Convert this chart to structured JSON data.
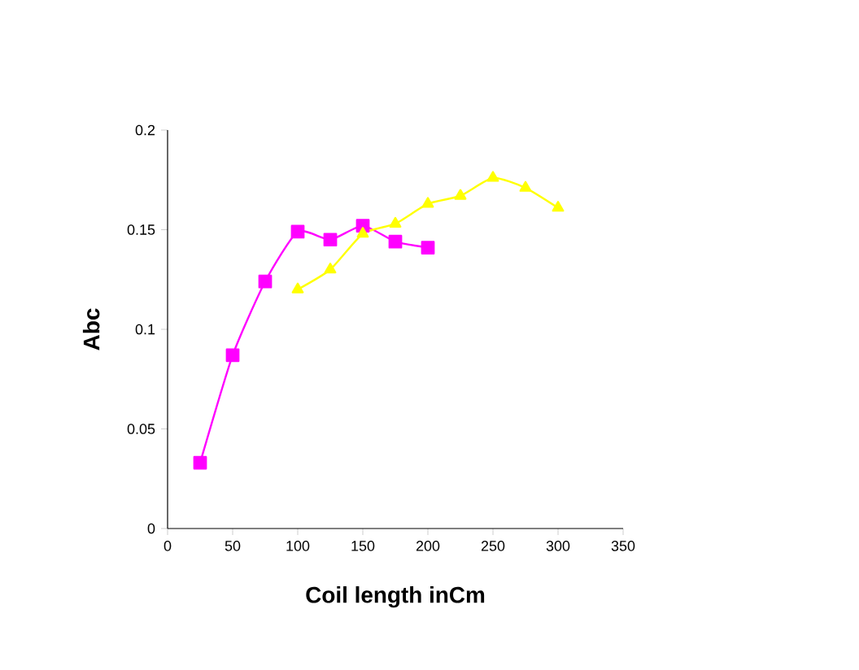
{
  "chart_data": {
    "type": "line",
    "xlabel": "Coil length inCm",
    "ylabel": "Abc",
    "xlim": [
      0,
      350
    ],
    "xticks": [
      0,
      50,
      100,
      150,
      200,
      250,
      300,
      350
    ],
    "ylim": [
      0,
      0.2
    ],
    "yticks": [
      0,
      0.05,
      0.1,
      0.15,
      0.2
    ],
    "grid": false,
    "series": [
      {
        "color": "#ff00ff",
        "marker": "square",
        "x": [
          25,
          50,
          75,
          100,
          125,
          150,
          175,
          200
        ],
        "values": [
          0.033,
          0.087,
          0.124,
          0.149,
          0.145,
          0.152,
          0.144,
          0.141
        ]
      },
      {
        "color": "#ffff00",
        "marker": "triangle",
        "x": [
          100,
          125,
          150,
          175,
          200,
          225,
          250,
          275,
          300
        ],
        "values": [
          0.12,
          0.13,
          0.148,
          0.153,
          0.163,
          0.167,
          0.176,
          0.171,
          0.161
        ]
      }
    ]
  }
}
